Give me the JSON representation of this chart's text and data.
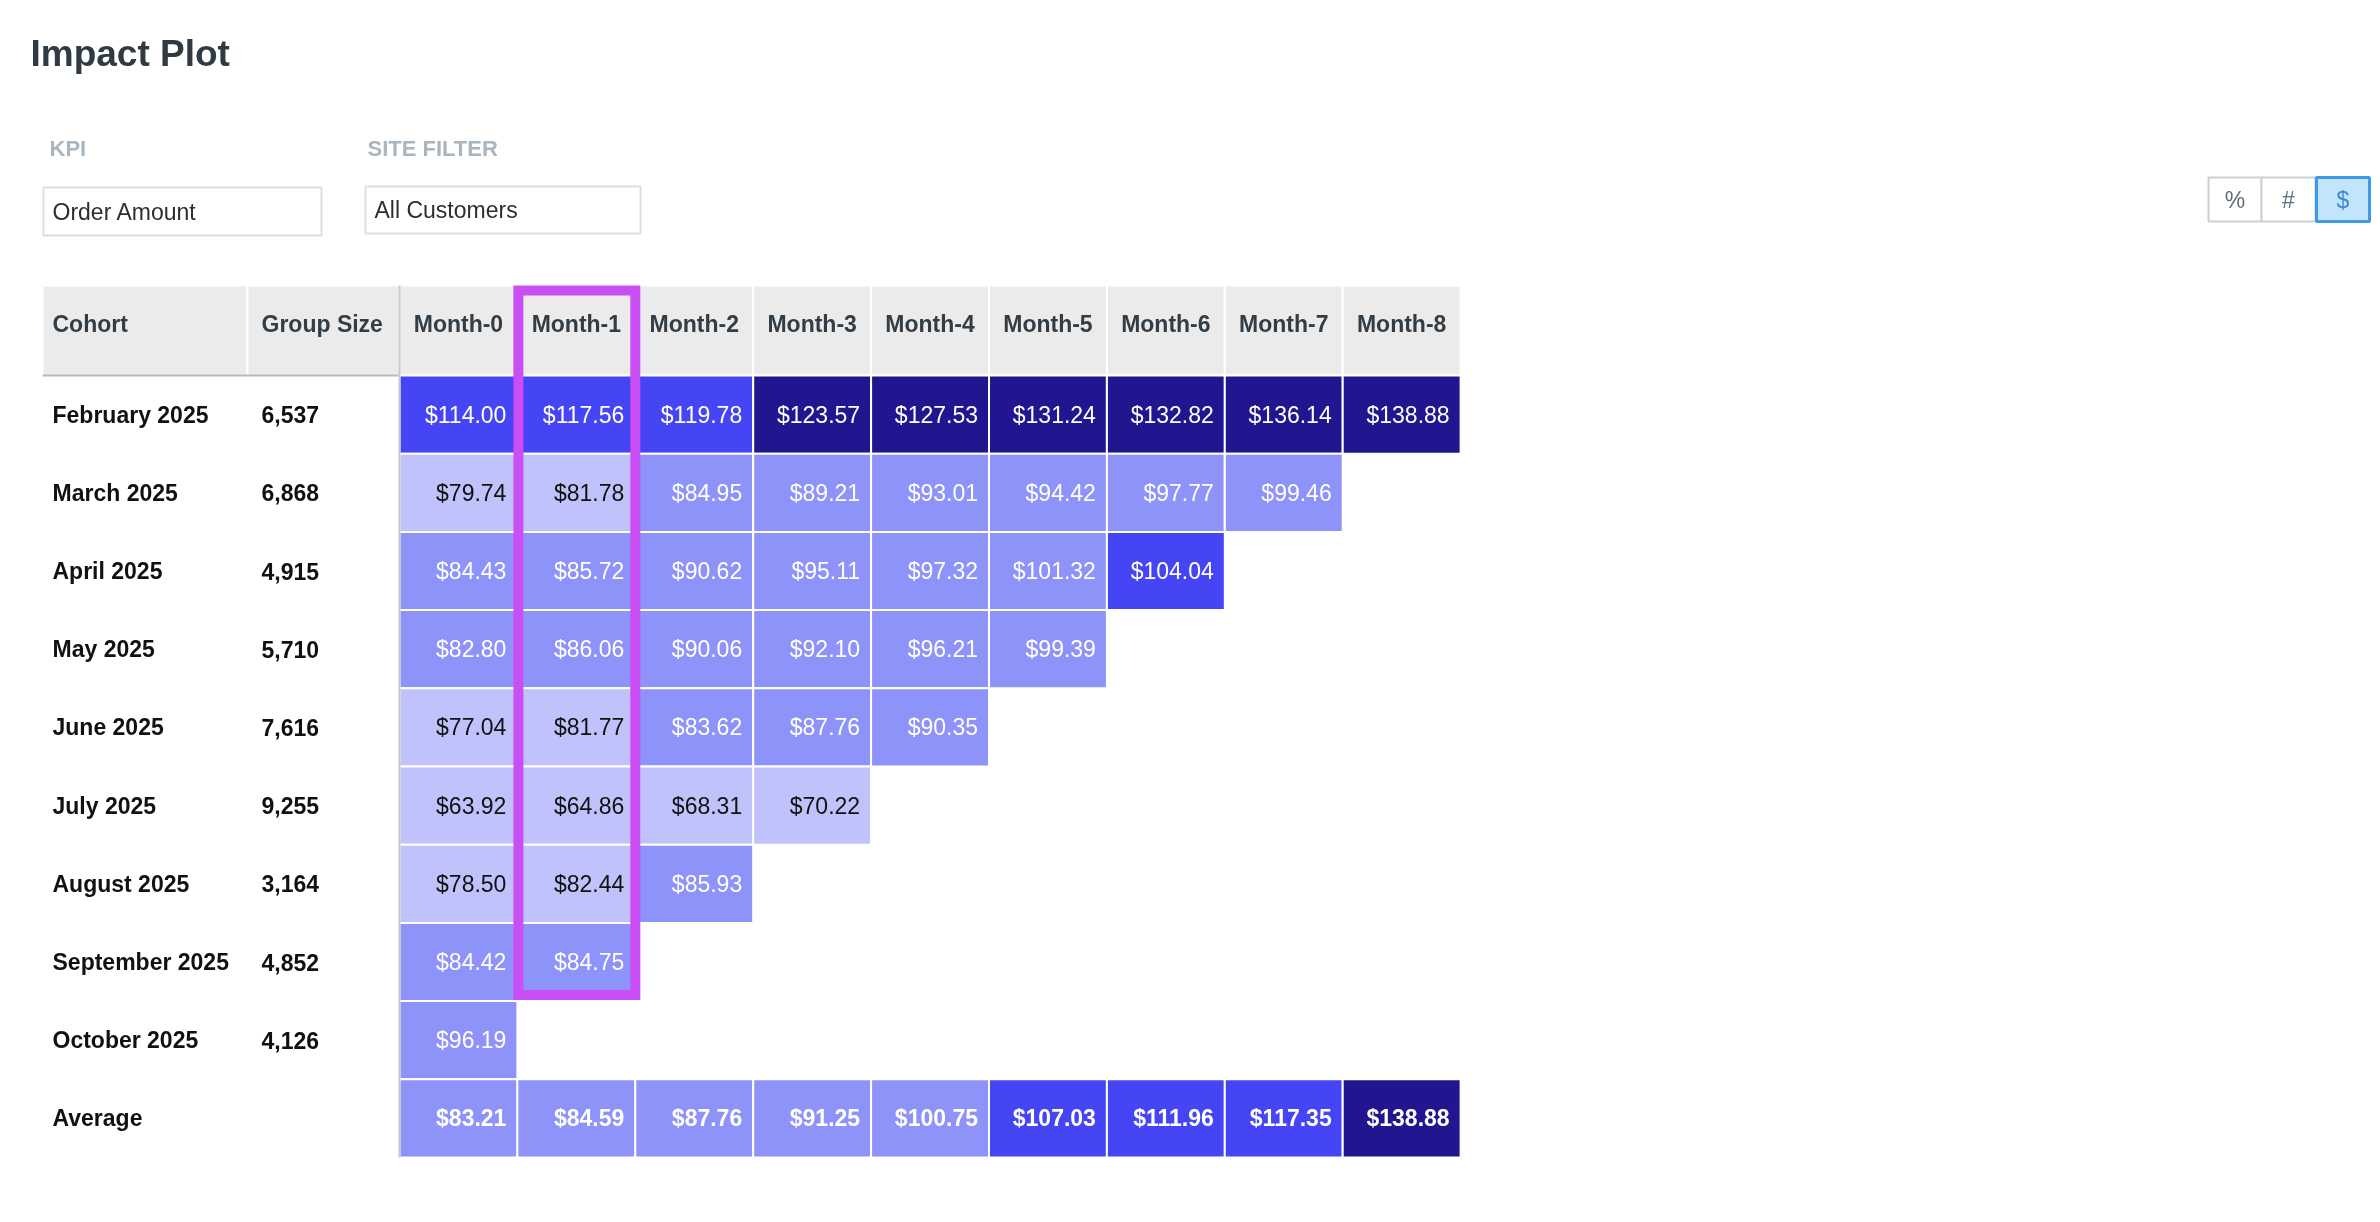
{
  "chart_data": {
    "type": "heatmap",
    "title": "Impact Plot",
    "ylabel": "Cohort",
    "y2label": "Group Size",
    "categories": [
      "Month-0",
      "Month-1",
      "Month-2",
      "Month-3",
      "Month-4",
      "Month-5",
      "Month-6",
      "Month-7",
      "Month-8"
    ],
    "y_categories": [
      "February 2025",
      "March 2025",
      "April 2025",
      "May 2025",
      "June 2025",
      "July 2025",
      "August 2025",
      "September 2025",
      "October 2025",
      "Average"
    ],
    "y2_categories": [
      "6,537",
      "6,868",
      "4,915",
      "5,710",
      "7,616",
      "9,255",
      "3,164",
      "4,852",
      "4,126",
      null
    ],
    "cells": [
      [
        114.0,
        117.56,
        119.78,
        123.57,
        127.53,
        131.24,
        132.82,
        136.14,
        138.88
      ],
      [
        79.74,
        81.78,
        84.95,
        89.21,
        93.01,
        94.42,
        97.77,
        99.46,
        null
      ],
      [
        84.43,
        85.72,
        90.62,
        95.11,
        97.32,
        101.32,
        104.04,
        null,
        null
      ],
      [
        82.8,
        86.06,
        90.06,
        92.1,
        96.21,
        99.39,
        null,
        null,
        null
      ],
      [
        77.04,
        81.77,
        83.62,
        87.76,
        90.35,
        null,
        null,
        null,
        null
      ],
      [
        63.92,
        64.86,
        68.31,
        70.22,
        null,
        null,
        null,
        null,
        null
      ],
      [
        78.5,
        82.44,
        85.93,
        null,
        null,
        null,
        null,
        null,
        null
      ],
      [
        84.42,
        84.75,
        null,
        null,
        null,
        null,
        null,
        null,
        null
      ],
      [
        96.19,
        null,
        null,
        null,
        null,
        null,
        null,
        null,
        null
      ],
      [
        83.21,
        84.59,
        87.76,
        91.25,
        100.75,
        107.03,
        111.96,
        117.35,
        138.88
      ]
    ],
    "cell_labels": [
      [
        "$114.00",
        "$117.56",
        "$119.78",
        "$123.57",
        "$127.53",
        "$131.24",
        "$132.82",
        "$136.14",
        "$138.88"
      ],
      [
        "$79.74",
        "$81.78",
        "$84.95",
        "$89.21",
        "$93.01",
        "$94.42",
        "$97.77",
        "$99.46",
        null
      ],
      [
        "$84.43",
        "$85.72",
        "$90.62",
        "$95.11",
        "$97.32",
        "$101.32",
        "$104.04",
        null,
        null
      ],
      [
        "$82.80",
        "$86.06",
        "$90.06",
        "$92.10",
        "$96.21",
        "$99.39",
        null,
        null,
        null
      ],
      [
        "$77.04",
        "$81.77",
        "$83.62",
        "$87.76",
        "$90.35",
        null,
        null,
        null,
        null
      ],
      [
        "$63.92",
        "$64.86",
        "$68.31",
        "$70.22",
        null,
        null,
        null,
        null,
        null
      ],
      [
        "$78.50",
        "$82.44",
        "$85.93",
        null,
        null,
        null,
        null,
        null,
        null
      ],
      [
        "$84.42",
        "$84.75",
        null,
        null,
        null,
        null,
        null,
        null,
        null
      ],
      [
        "$96.19",
        null,
        null,
        null,
        null,
        null,
        null,
        null,
        null
      ],
      [
        "$83.21",
        "$84.59",
        "$87.76",
        "$91.25",
        "$100.75",
        "$107.03",
        "$111.96",
        "$117.35",
        "$138.88"
      ]
    ],
    "colors": [
      [
        "#4545f6",
        "#4545f6",
        "#4545f6",
        "#21168f",
        "#21168f",
        "#21168f",
        "#21168f",
        "#21168f",
        "#21168f"
      ],
      [
        "#c0c3fb",
        "#c0c3fb",
        "#8e93f9",
        "#8e93f9",
        "#8e93f9",
        "#8e93f9",
        "#8e93f9",
        "#8e93f9",
        null
      ],
      [
        "#8e93f9",
        "#8e93f9",
        "#8e93f9",
        "#8e93f9",
        "#8e93f9",
        "#8e93f9",
        "#4545f6",
        null,
        null
      ],
      [
        "#8e93f9",
        "#8e93f9",
        "#8e93f9",
        "#8e93f9",
        "#8e93f9",
        "#8e93f9",
        null,
        null,
        null
      ],
      [
        "#c0c3fb",
        "#c0c3fb",
        "#8e93f9",
        "#8e93f9",
        "#8e93f9",
        null,
        null,
        null,
        null
      ],
      [
        "#c0c3fb",
        "#c0c3fb",
        "#c0c3fb",
        "#c0c3fb",
        null,
        null,
        null,
        null,
        null
      ],
      [
        "#c0c3fb",
        "#c0c3fb",
        "#8e93f9",
        null,
        null,
        null,
        null,
        null,
        null
      ],
      [
        "#8e93f9",
        "#8e93f9",
        null,
        null,
        null,
        null,
        null,
        null,
        null
      ],
      [
        "#8e93f9",
        null,
        null,
        null,
        null,
        null,
        null,
        null,
        null
      ],
      [
        "#8e93f9",
        "#8e93f9",
        "#8e93f9",
        "#8e93f9",
        "#8e93f9",
        "#4545f6",
        "#4545f6",
        "#4545f6",
        "#21168f"
      ]
    ],
    "bands": [
      {
        "axis": "x",
        "from": "Month-1",
        "to": "Month-1",
        "color": "#c94ff5"
      }
    ],
    "annotations": [
      "KPI",
      "Order Amount",
      "SITE FILTER",
      "All Customers",
      "%",
      "#",
      "$"
    ]
  }
}
